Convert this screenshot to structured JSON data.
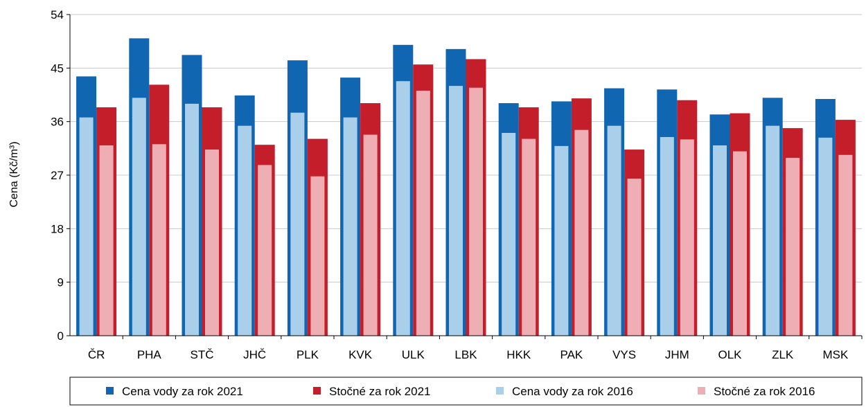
{
  "chart_data": {
    "type": "bar",
    "ylabel": "Cena (Kč/m³)",
    "ylim": [
      0,
      54
    ],
    "yticks": [
      0,
      9,
      18,
      27,
      36,
      45,
      54
    ],
    "grid": true,
    "legend_position": "bottom",
    "categories": [
      "ČR",
      "PHA",
      "STČ",
      "JHČ",
      "PLK",
      "KVK",
      "ULK",
      "LBK",
      "HKK",
      "PAK",
      "VYS",
      "JHM",
      "OLK",
      "ZLK",
      "MSK"
    ],
    "series": [
      {
        "name": "Cena vody za rok 2021",
        "color": "#1066b0",
        "values": [
          43.6,
          50.0,
          47.2,
          40.4,
          46.3,
          43.4,
          48.9,
          48.2,
          39.1,
          39.4,
          41.6,
          41.4,
          37.2,
          40.0,
          39.8
        ]
      },
      {
        "name": "Stočné za rok 2021",
        "color": "#c41e2b",
        "values": [
          38.4,
          42.2,
          38.4,
          32.1,
          33.1,
          39.1,
          45.6,
          46.5,
          38.4,
          39.9,
          31.3,
          39.6,
          37.4,
          34.9,
          36.3
        ]
      },
      {
        "name": "Cena vody za rok 2016",
        "color": "#a9cfeb",
        "values": [
          36.7,
          40.0,
          39.0,
          35.3,
          37.5,
          36.7,
          42.8,
          42.0,
          34.1,
          31.9,
          35.3,
          33.4,
          32.0,
          35.3,
          33.3
        ]
      },
      {
        "name": "Stočné za rok 2016",
        "color": "#efaeb4",
        "values": [
          32.0,
          32.2,
          31.3,
          28.7,
          26.8,
          33.8,
          41.2,
          41.7,
          33.1,
          34.6,
          26.4,
          33.0,
          31.0,
          29.9,
          30.4
        ]
      }
    ]
  }
}
